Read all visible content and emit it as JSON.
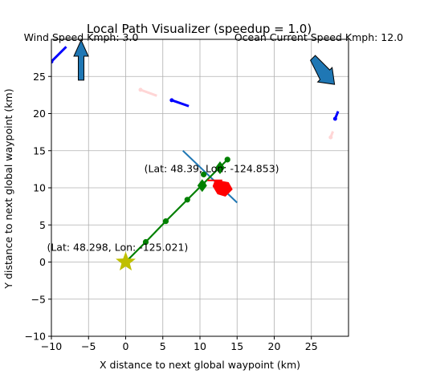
{
  "chart_data": {
    "type": "scatter",
    "title": "Local Path Visualizer (speedup = 1.0)",
    "xlabel": "X distance to next global waypoint (km)",
    "ylabel": "Y distance to next global waypoint (km)",
    "xlim": [
      -10,
      30
    ],
    "ylim": [
      -10,
      30
    ],
    "xticks": [
      -10,
      -5,
      0,
      5,
      10,
      15,
      20,
      25
    ],
    "yticks": [
      -10,
      -5,
      0,
      5,
      10,
      15,
      20,
      25
    ],
    "grid": true,
    "wind_label": "Wind Speed Kmph: 3.0",
    "current_label": "Ocean Current Speed Kmph: 12.0",
    "start_label": "(Lat: 48.298, Lon: -125.021)",
    "waypoint_label": "(Lat: 48.39, Lon: -124.853)",
    "start_point": {
      "x": 0,
      "y": 0
    },
    "goal_point": {
      "x": 11.5,
      "y": 11.5
    },
    "path": [
      {
        "x": 0,
        "y": 0
      },
      {
        "x": 2.7,
        "y": 2.7
      },
      {
        "x": 5.4,
        "y": 5.5
      },
      {
        "x": 8.3,
        "y": 8.4
      },
      {
        "x": 10.4,
        "y": 10.5
      },
      {
        "x": 13.7,
        "y": 13.8
      }
    ],
    "path_marker_extra": {
      "x": 10.5,
      "y": 11.8
    },
    "boat_position": {
      "x": 13.0,
      "y": 10.0
    },
    "boat_heading_line": [
      {
        "x": 7.7,
        "y": 15.0
      },
      {
        "x": 15.0,
        "y": 8.0
      }
    ],
    "boat_direction_arrow": [
      {
        "x": 11.0,
        "y": 11.0
      },
      {
        "x": 13.0,
        "y": 11.0
      }
    ],
    "obstacles": [
      {
        "color": "#0000ff",
        "points": [
          {
            "x": 6.2,
            "y": 21.8
          },
          {
            "x": 8.5,
            "y": 21.0
          }
        ]
      },
      {
        "color": "#ffd6d6",
        "points": [
          {
            "x": 2.0,
            "y": 23.2
          },
          {
            "x": 4.2,
            "y": 22.4
          }
        ]
      },
      {
        "color": "#0000ff",
        "points": [
          {
            "x": 28.2,
            "y": 19.3
          },
          {
            "x": 28.6,
            "y": 20.3
          }
        ]
      },
      {
        "color": "#ffd6d6",
        "points": [
          {
            "x": 27.6,
            "y": 16.8
          },
          {
            "x": 27.9,
            "y": 17.6
          }
        ]
      },
      {
        "color": "#0000ff",
        "points": [
          {
            "x": -10.0,
            "y": 27.0
          },
          {
            "x": -8.0,
            "y": 29.0
          }
        ]
      }
    ],
    "wind_arrow": {
      "dir": "up",
      "color": "#1f77b4"
    },
    "current_arrow": {
      "dir": "down-right",
      "color": "#1f77b4"
    },
    "colors": {
      "path": "#008000",
      "start_star": "#bfbf00",
      "waypoint_diamond": "#008000",
      "boat": "#ff0000",
      "heading_line": "#1f77b4",
      "grid": "#b0b0b0"
    }
  }
}
